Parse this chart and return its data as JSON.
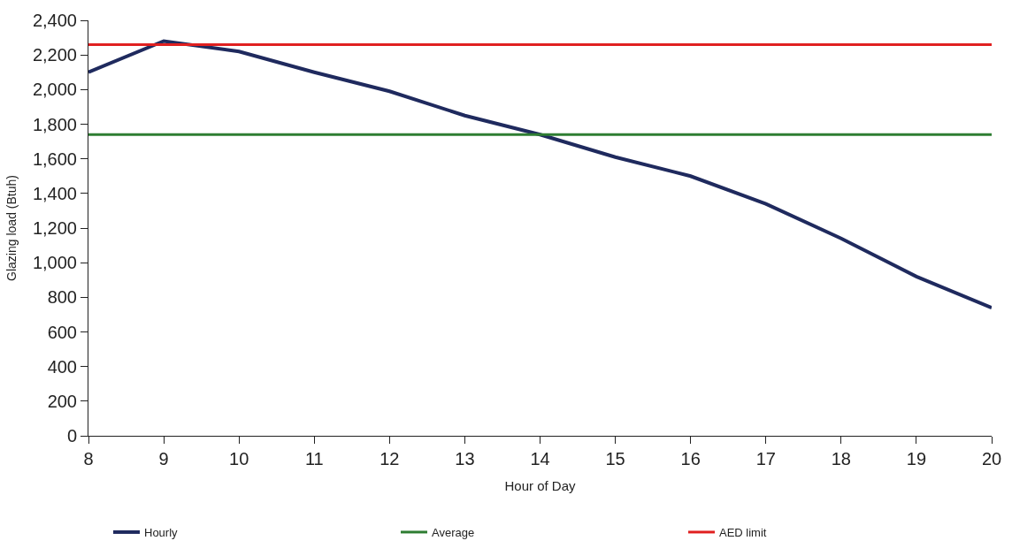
{
  "chart_data": {
    "type": "line",
    "xlabel": "Hour of Day",
    "ylabel": "Glazing load (Btuh)",
    "x": [
      8,
      9,
      10,
      11,
      12,
      13,
      14,
      15,
      16,
      17,
      18,
      19,
      20
    ],
    "series": [
      {
        "name": "Hourly",
        "color": "#1f2a5e",
        "values": [
          2100,
          2280,
          2220,
          2100,
          1990,
          1850,
          1740,
          1610,
          1500,
          1340,
          1140,
          920,
          740
        ]
      },
      {
        "name": "Average",
        "color": "#2e7d32",
        "values": [
          1740,
          1740,
          1740,
          1740,
          1740,
          1740,
          1740,
          1740,
          1740,
          1740,
          1740,
          1740,
          1740
        ]
      },
      {
        "name": "AED limit",
        "color": "#e02020",
        "values": [
          2260,
          2260,
          2260,
          2260,
          2260,
          2260,
          2260,
          2260,
          2260,
          2260,
          2260,
          2260,
          2260
        ]
      }
    ],
    "xlim": [
      8,
      20
    ],
    "xticks": [
      8,
      9,
      10,
      11,
      12,
      13,
      14,
      15,
      16,
      17,
      18,
      19,
      20
    ],
    "ylim": [
      0,
      2400
    ],
    "yticks": [
      0,
      {
        "value": 200,
        "label": "200"
      },
      {
        "value": 400,
        "label": "400"
      },
      {
        "value": 600,
        "label": "600"
      },
      {
        "value": 800,
        "label": "800"
      },
      {
        "value": 1000,
        "label": "1,000"
      },
      {
        "value": 1200,
        "label": "1,200"
      },
      {
        "value": 1400,
        "label": "1,400"
      },
      {
        "value": 1600,
        "label": "1,600"
      },
      {
        "value": 1800,
        "label": "1,800"
      },
      {
        "value": 2000,
        "label": "2,000"
      },
      {
        "value": 2200,
        "label": "2,200"
      },
      {
        "value": 2400,
        "label": "2,400"
      }
    ],
    "legend": "bottom",
    "marker": "none",
    "line_style": "solid"
  }
}
